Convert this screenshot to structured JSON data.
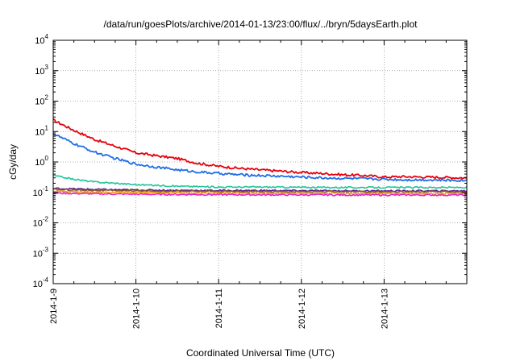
{
  "chart_data": {
    "type": "line",
    "title": "/data/run/goesPlots/archive/2014-01-13/23:00/flux/../bryn/5daysEarth.plot",
    "xlabel": "Coordinated Universal Time (UTC)",
    "ylabel": "cGy/day",
    "xlim": [
      "2014-01-09 00:00",
      "2014-01-14 00:00"
    ],
    "ylim": [
      0.0001,
      10000
    ],
    "yscale": "log",
    "grid": true,
    "x_ticks": [
      "2014-1-9",
      "2014-1-10",
      "2014-1-11",
      "2014-1-12",
      "2014-1-13"
    ],
    "y_ticks": [
      {
        "base": "10",
        "exp": "-4",
        "value": 0.0001
      },
      {
        "base": "10",
        "exp": "-3",
        "value": 0.001
      },
      {
        "base": "10",
        "exp": "-2",
        "value": 0.01
      },
      {
        "base": "10",
        "exp": "-1",
        "value": 0.1
      },
      {
        "base": "10",
        "exp": "0",
        "value": 1
      },
      {
        "base": "10",
        "exp": "1",
        "value": 10
      },
      {
        "base": "10",
        "exp": "2",
        "value": 100
      },
      {
        "base": "10",
        "exp": "3",
        "value": 1000
      },
      {
        "base": "10",
        "exp": "4",
        "value": 10000
      }
    ],
    "x_days": [
      0,
      0.25,
      0.5,
      0.75,
      1.0,
      1.25,
      1.5,
      1.75,
      2.0,
      2.25,
      2.5,
      2.75,
      3.0,
      3.25,
      3.5,
      3.75,
      4.0,
      4.25,
      4.5,
      4.75,
      5.0
    ],
    "series": [
      {
        "color": "#e8000b",
        "values": [
          24,
          11,
          5.5,
          3.3,
          2.0,
          1.6,
          1.3,
          0.9,
          0.72,
          0.62,
          0.55,
          0.5,
          0.45,
          0.42,
          0.38,
          0.36,
          0.32,
          0.33,
          0.32,
          0.31,
          0.3
        ]
      },
      {
        "color": "#1f6ee8",
        "values": [
          8.5,
          4.0,
          2.1,
          1.3,
          0.85,
          0.68,
          0.55,
          0.47,
          0.42,
          0.38,
          0.36,
          0.34,
          0.32,
          0.3,
          0.29,
          0.28,
          0.27,
          0.26,
          0.26,
          0.25,
          0.25
        ]
      },
      {
        "color": "#22c39a",
        "values": [
          0.36,
          0.27,
          0.22,
          0.2,
          0.18,
          0.17,
          0.16,
          0.155,
          0.15,
          0.15,
          0.15,
          0.148,
          0.147,
          0.146,
          0.145,
          0.145,
          0.145,
          0.145,
          0.145,
          0.145,
          0.145
        ]
      },
      {
        "color": "#5a1a8c",
        "values": [
          0.135,
          0.13,
          0.125,
          0.122,
          0.12,
          0.118,
          0.117,
          0.116,
          0.115,
          0.115,
          0.115,
          0.114,
          0.114,
          0.113,
          0.113,
          0.112,
          0.112,
          0.112,
          0.112,
          0.112,
          0.112
        ]
      },
      {
        "color": "#8b5a2b",
        "values": [
          0.125,
          0.12,
          0.117,
          0.114,
          0.112,
          0.11,
          0.109,
          0.108,
          0.107,
          0.107,
          0.106,
          0.106,
          0.106,
          0.105,
          0.105,
          0.105,
          0.105,
          0.105,
          0.105,
          0.105,
          0.105
        ]
      },
      {
        "color": "#f2a007",
        "values": [
          0.11,
          0.105,
          0.102,
          0.1,
          0.098,
          0.097,
          0.096,
          0.095,
          0.094,
          0.094,
          0.093,
          0.093,
          0.093,
          0.093,
          0.092,
          0.092,
          0.092,
          0.092,
          0.092,
          0.092,
          0.092
        ]
      },
      {
        "color": "#e61fd0",
        "values": [
          0.095,
          0.092,
          0.09,
          0.088,
          0.087,
          0.086,
          0.085,
          0.085,
          0.084,
          0.084,
          0.083,
          0.083,
          0.083,
          0.083,
          0.082,
          0.082,
          0.082,
          0.082,
          0.082,
          0.082,
          0.082
        ]
      }
    ]
  }
}
